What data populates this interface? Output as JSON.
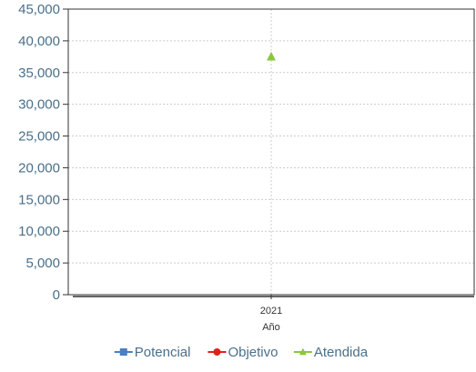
{
  "chart_data": {
    "type": "scatter",
    "categories": [
      "2021"
    ],
    "xlabel": "Año",
    "ylabel": "",
    "ylim": [
      0,
      45000
    ],
    "yticks": [
      0,
      5000,
      10000,
      15000,
      20000,
      25000,
      30000,
      35000,
      40000,
      45000
    ],
    "ytick_labels": [
      "0",
      "5,000",
      "10,000",
      "15,000",
      "20,000",
      "25,000",
      "30,000",
      "35,000",
      "40,000",
      "45,000"
    ],
    "grid": true,
    "legend_position": "bottom",
    "series": [
      {
        "name": "Potencial",
        "color": "#4a7fc1",
        "marker": "square",
        "values": [
          null
        ]
      },
      {
        "name": "Objetivo",
        "color": "#e0201b",
        "marker": "circle",
        "values": [
          null
        ]
      },
      {
        "name": "Atendida",
        "color": "#8cc63f",
        "marker": "triangle",
        "values": [
          37500
        ]
      }
    ]
  }
}
